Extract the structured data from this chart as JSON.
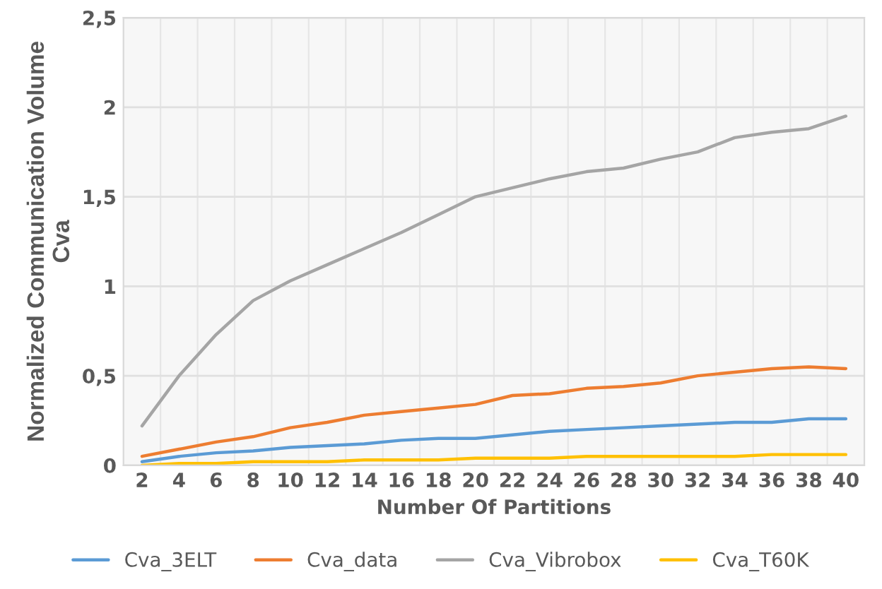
{
  "chart_data": {
    "type": "line",
    "xlabel": "Number Of Partitions",
    "ylabel": "Normalized Communication Volume\nCva",
    "categories": [
      "2",
      "4",
      "6",
      "8",
      "10",
      "12",
      "14",
      "16",
      "18",
      "20",
      "22",
      "24",
      "26",
      "28",
      "30",
      "32",
      "34",
      "36",
      "38",
      "40"
    ],
    "series": [
      {
        "name": "Cva_3ELT",
        "color": "#5b9bd5",
        "values": [
          0.02,
          0.05,
          0.07,
          0.08,
          0.1,
          0.11,
          0.12,
          0.14,
          0.15,
          0.15,
          0.17,
          0.19,
          0.2,
          0.21,
          0.22,
          0.23,
          0.24,
          0.24,
          0.26,
          0.26
        ]
      },
      {
        "name": "Cva_data",
        "color": "#ed7d31",
        "values": [
          0.05,
          0.09,
          0.13,
          0.16,
          0.21,
          0.24,
          0.28,
          0.3,
          0.32,
          0.34,
          0.39,
          0.4,
          0.43,
          0.44,
          0.46,
          0.5,
          0.52,
          0.54,
          0.55,
          0.54
        ]
      },
      {
        "name": "Cva_Vibrobox",
        "color": "#a5a5a5",
        "values": [
          0.22,
          0.5,
          0.73,
          0.92,
          1.03,
          1.12,
          1.21,
          1.3,
          1.4,
          1.5,
          1.55,
          1.6,
          1.64,
          1.66,
          1.71,
          1.75,
          1.83,
          1.86,
          1.88,
          1.95
        ]
      },
      {
        "name": "Cva_T60K",
        "color": "#ffc000",
        "values": [
          0.0,
          0.01,
          0.01,
          0.02,
          0.02,
          0.02,
          0.03,
          0.03,
          0.03,
          0.04,
          0.04,
          0.04,
          0.05,
          0.05,
          0.05,
          0.05,
          0.05,
          0.06,
          0.06,
          0.06
        ]
      }
    ],
    "ylim": [
      0,
      2.5
    ],
    "yticks": [
      0,
      {
        "value": 0.5,
        "label": "0,5"
      },
      1,
      {
        "value": 1.5,
        "label": "1,5"
      },
      2,
      {
        "value": 2.5,
        "label": "2,5"
      }
    ],
    "grid": true,
    "legend": "bottom",
    "marker": "none",
    "line_style": "solid"
  }
}
